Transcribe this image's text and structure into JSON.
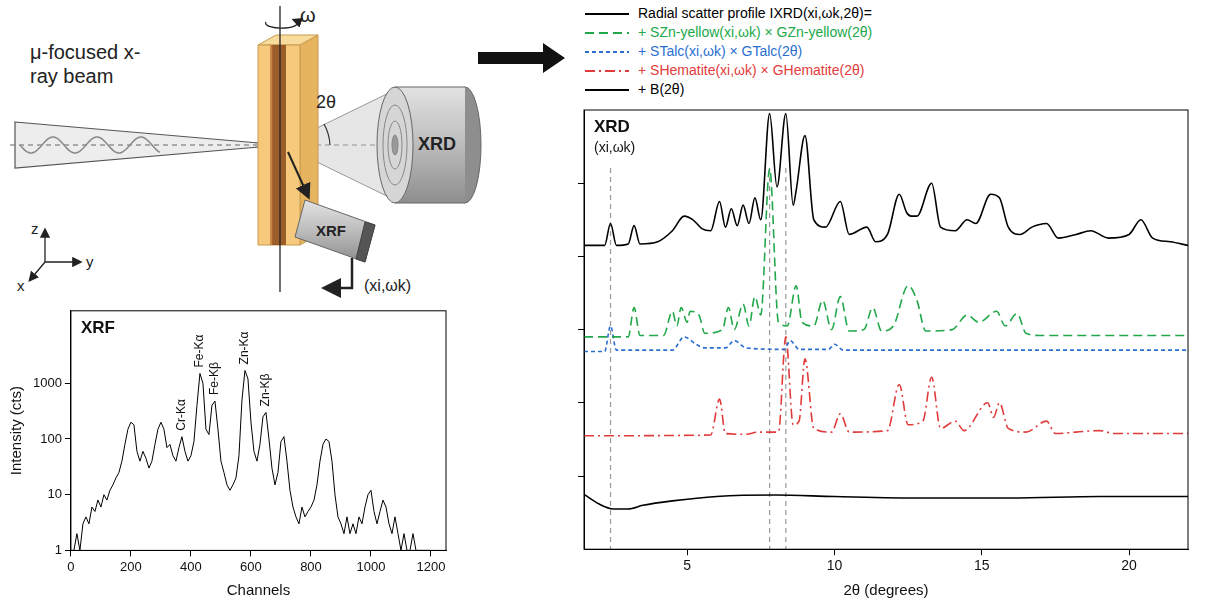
{
  "diagram": {
    "beam_label": "μ-focused x-ray beam",
    "rotation": "ω",
    "angle": "2θ",
    "xrd_detector": "XRD",
    "xrf_detector": "XRF",
    "axes": [
      "z",
      "y",
      "x"
    ],
    "xrf_arrow_label": "(xi,ωk)"
  },
  "chart_data": [
    {
      "type": "line",
      "title": "XRF",
      "x_label": "Channels",
      "y_label": "Intensity (cts)",
      "log": "y",
      "grid": false,
      "color": "#000000",
      "xlim": [
        0,
        1250
      ],
      "xticks": [
        0,
        200,
        400,
        600,
        800,
        1000,
        1200
      ],
      "ylim": [
        1,
        20000
      ],
      "yticks": [
        1,
        10,
        100,
        1000
      ],
      "x": [
        0,
        10,
        20,
        30,
        40,
        50,
        60,
        70,
        80,
        90,
        100,
        110,
        120,
        130,
        140,
        150,
        160,
        170,
        180,
        190,
        200,
        210,
        220,
        230,
        240,
        250,
        260,
        270,
        280,
        290,
        300,
        310,
        320,
        330,
        340,
        350,
        360,
        370,
        380,
        390,
        400,
        410,
        420,
        430,
        440,
        450,
        460,
        470,
        480,
        490,
        500,
        510,
        520,
        530,
        540,
        550,
        560,
        570,
        580,
        590,
        600,
        610,
        620,
        630,
        640,
        650,
        660,
        670,
        680,
        690,
        700,
        710,
        720,
        730,
        740,
        750,
        760,
        770,
        780,
        790,
        800,
        810,
        820,
        830,
        840,
        850,
        860,
        870,
        880,
        890,
        900,
        910,
        920,
        930,
        940,
        950,
        960,
        970,
        980,
        990,
        1000,
        1010,
        1020,
        1030,
        1040,
        1050,
        1060,
        1070,
        1080,
        1090,
        1100,
        1110,
        1120,
        1130,
        1140,
        1150,
        1160,
        1170,
        1180,
        1190,
        1200
      ],
      "values": [
        1,
        1,
        2,
        1,
        3,
        4,
        3,
        6,
        5,
        8,
        6,
        10,
        8,
        12,
        15,
        20,
        25,
        40,
        80,
        150,
        200,
        180,
        60,
        40,
        60,
        45,
        30,
        40,
        80,
        150,
        200,
        150,
        70,
        80,
        50,
        40,
        70,
        110,
        60,
        40,
        50,
        90,
        400,
        1500,
        1000,
        150,
        120,
        400,
        480,
        150,
        40,
        25,
        15,
        12,
        15,
        20,
        50,
        500,
        1700,
        1200,
        200,
        60,
        40,
        80,
        250,
        300,
        100,
        30,
        15,
        25,
        90,
        110,
        40,
        12,
        6,
        4,
        3,
        6,
        4,
        5,
        6,
        8,
        15,
        40,
        80,
        100,
        90,
        40,
        10,
        4,
        3,
        2,
        4,
        2,
        3,
        2,
        4,
        3,
        6,
        10,
        12,
        5,
        3,
        5,
        8,
        6,
        3,
        2,
        4,
        2,
        1,
        2,
        1,
        1,
        2,
        1,
        1,
        1,
        1,
        1,
        1
      ],
      "peak_labels": [
        {
          "text": "Cr-Kα",
          "x": 370
        },
        {
          "text": "Fe-Kα",
          "x": 430
        },
        {
          "text": "Fe-Kβ",
          "x": 480
        },
        {
          "text": "Zn-Kα",
          "x": 580
        },
        {
          "text": "Zn-Kβ",
          "x": 650
        }
      ]
    },
    {
      "type": "line",
      "title": "XRD",
      "subtitle": "(xi,ωk)",
      "x_label": "2θ (degrees)",
      "grid": false,
      "legend": "top",
      "tick_labels": "x",
      "xlim": [
        1.5,
        22
      ],
      "xticks": [
        5,
        10,
        15,
        20
      ],
      "ylim": [
        0,
        6
      ],
      "yticks": [
        1,
        2,
        3,
        4,
        5
      ],
      "guide_lines": [
        2.4,
        7.8,
        8.35
      ],
      "series": [
        {
          "name": "Radial scatter profile IXRD(xi,ωk,2θ)=",
          "color": "#000000",
          "line_style": "solid",
          "x": [
            1.5,
            2.2,
            2.4,
            2.6,
            3.0,
            3.2,
            3.4,
            4.0,
            4.5,
            4.9,
            5.2,
            5.5,
            5.8,
            6.1,
            6.3,
            6.5,
            6.7,
            6.9,
            7.1,
            7.3,
            7.5,
            7.8,
            8.05,
            8.35,
            8.6,
            8.7,
            9.0,
            9.3,
            9.7,
            10.2,
            10.5,
            11.1,
            11.4,
            11.8,
            12.2,
            12.45,
            12.6,
            12.8,
            13.3,
            13.6,
            14.1,
            14.5,
            14.8,
            15.3,
            15.6,
            15.9,
            16.3,
            16.7,
            17.2,
            17.6,
            18.2,
            18.7,
            19.3,
            20.0,
            20.4,
            20.8,
            21.4,
            22
          ],
          "values": [
            4.15,
            4.15,
            4.45,
            4.15,
            4.17,
            4.42,
            4.17,
            4.2,
            4.35,
            4.55,
            4.5,
            4.38,
            4.35,
            4.75,
            4.4,
            4.65,
            4.42,
            4.7,
            4.45,
            4.8,
            4.5,
            5.95,
            4.95,
            5.95,
            4.7,
            4.9,
            5.65,
            4.5,
            4.4,
            4.75,
            4.3,
            4.4,
            4.2,
            4.3,
            4.85,
            4.6,
            4.55,
            4.55,
            5.0,
            4.4,
            4.35,
            4.5,
            4.45,
            4.85,
            4.8,
            4.4,
            4.3,
            4.4,
            4.45,
            4.25,
            4.3,
            4.35,
            4.25,
            4.3,
            4.5,
            4.25,
            4.2,
            4.15
          ]
        },
        {
          "name": "+ SZn-yellow(xi,ωk) × GZn-yellow(2θ)",
          "color": "#22a84a",
          "line_style": "dashed",
          "x": [
            1.5,
            3.0,
            3.2,
            3.4,
            4.2,
            4.5,
            4.65,
            4.8,
            5.0,
            5.1,
            5.4,
            5.6,
            6.2,
            6.4,
            6.6,
            6.9,
            7.1,
            7.3,
            7.5,
            7.8,
            8.1,
            8.4,
            8.7,
            8.9,
            9.3,
            9.6,
            9.9,
            10.2,
            10.5,
            11.0,
            11.3,
            11.6,
            12.0,
            12.5,
            12.8,
            13.1,
            14.0,
            14.5,
            14.9,
            15.5,
            15.8,
            16.2,
            16.5,
            17.0,
            22
          ],
          "values": [
            2.9,
            2.9,
            3.3,
            2.92,
            2.92,
            3.25,
            3.05,
            3.3,
            3.1,
            3.25,
            3.2,
            2.95,
            3.0,
            3.3,
            3.0,
            3.35,
            3.05,
            3.45,
            3.2,
            5.2,
            3.1,
            3.05,
            3.6,
            3.1,
            3.05,
            3.4,
            3.0,
            3.45,
            2.98,
            3.0,
            3.3,
            2.98,
            3.05,
            3.6,
            3.4,
            2.98,
            3.0,
            3.2,
            3.1,
            3.25,
            3.05,
            3.22,
            2.95,
            2.92,
            2.92
          ]
        },
        {
          "name": "+ STalc(xi,ωk) × GTalc(2θ)",
          "color": "#2a6fd0",
          "line_style": "dotted",
          "x": [
            1.5,
            2.2,
            2.4,
            2.6,
            4.5,
            4.9,
            5.3,
            5.6,
            6.3,
            6.6,
            7.0,
            8.3,
            8.5,
            8.8,
            9.8,
            10.0,
            10.3,
            22
          ],
          "values": [
            2.7,
            2.7,
            3.05,
            2.72,
            2.72,
            2.9,
            2.8,
            2.75,
            2.75,
            2.85,
            2.75,
            2.73,
            2.85,
            2.73,
            2.73,
            2.8,
            2.72,
            2.72
          ]
        },
        {
          "name": "+ SHematite(xi,ωk) × GHematite(2θ)",
          "color": "#e23b3b",
          "line_style": "dashdot",
          "x": [
            1.5,
            5.8,
            6.1,
            6.3,
            7.0,
            7.4,
            8.1,
            8.35,
            8.6,
            8.8,
            9.0,
            9.3,
            9.9,
            10.2,
            10.5,
            11.8,
            12.2,
            12.5,
            13.0,
            13.3,
            13.6,
            14.1,
            14.4,
            15.2,
            15.4,
            15.6,
            15.9,
            16.5,
            17.2,
            17.5,
            18.2,
            19.0,
            19.5,
            22
          ],
          "values": [
            1.55,
            1.56,
            2.05,
            1.58,
            1.57,
            1.6,
            1.6,
            2.9,
            1.7,
            1.75,
            2.6,
            1.65,
            1.6,
            1.85,
            1.6,
            1.62,
            2.25,
            1.7,
            1.75,
            2.35,
            1.65,
            1.75,
            1.62,
            2.0,
            1.8,
            2.0,
            1.65,
            1.6,
            1.75,
            1.58,
            1.6,
            1.62,
            1.58,
            1.58
          ]
        },
        {
          "name": "+ B(2θ)",
          "color": "#000000",
          "line_style": "solid",
          "x": [
            1.5,
            2.0,
            2.5,
            3.0,
            3.5,
            4.5,
            6,
            8,
            10,
            13,
            16,
            19,
            22
          ],
          "values": [
            0.75,
            0.62,
            0.55,
            0.55,
            0.6,
            0.66,
            0.72,
            0.74,
            0.72,
            0.7,
            0.7,
            0.72,
            0.72
          ]
        }
      ]
    }
  ]
}
